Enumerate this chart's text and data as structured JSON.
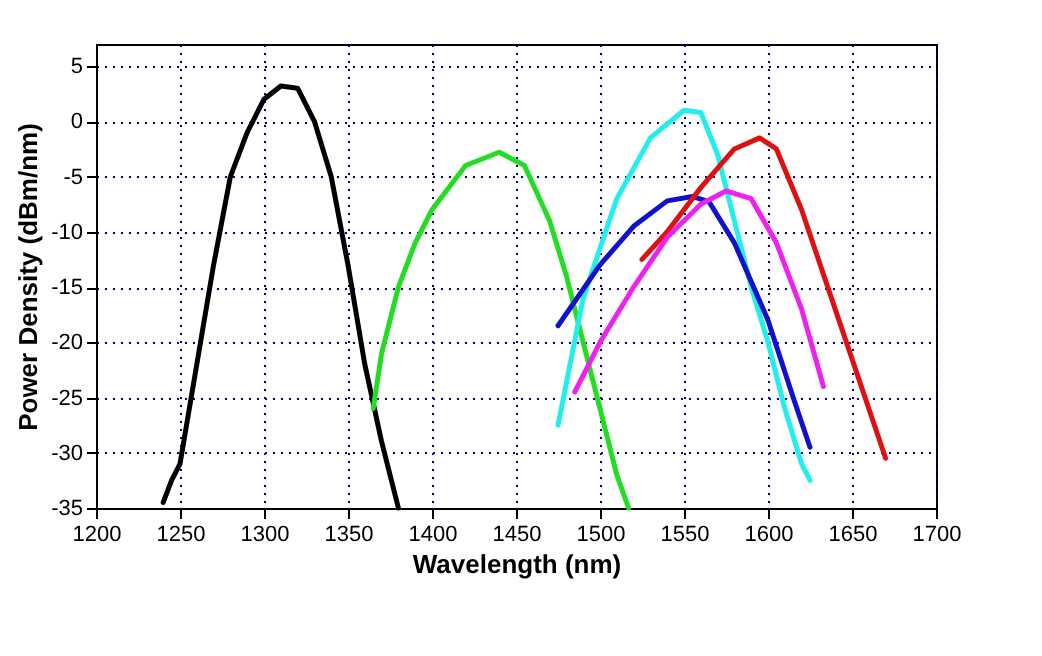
{
  "chart_data": {
    "type": "line",
    "xlabel": "Wavelength (nm)",
    "ylabel": "Power Density (dBm/nm)",
    "xlim": [
      1200,
      1700
    ],
    "xticks": [
      1200,
      1250,
      1300,
      1350,
      1400,
      1450,
      1500,
      1550,
      1600,
      1650,
      1700
    ],
    "ylim": [
      -35,
      7
    ],
    "yticks": [
      -35,
      -30,
      -25,
      -20,
      -15,
      -10,
      -5,
      0,
      5
    ],
    "grid": true,
    "line_style": "solid",
    "marker": "none",
    "series": [
      {
        "color": "#000000",
        "x": [
          1240,
          1245,
          1250,
          1260,
          1270,
          1280,
          1290,
          1300,
          1310,
          1320,
          1330,
          1340,
          1350,
          1360,
          1370,
          1380
        ],
        "values": [
          -34.5,
          -32.5,
          -31,
          -22,
          -13,
          -5,
          -1,
          2,
          3.2,
          3,
          0,
          -5,
          -13,
          -22,
          -29,
          -35
        ]
      },
      {
        "color": "#22dd22",
        "x": [
          1365,
          1370,
          1380,
          1390,
          1400,
          1420,
          1440,
          1455,
          1470,
          1480,
          1490,
          1500,
          1510,
          1517
        ],
        "values": [
          -26,
          -21,
          -15,
          -11,
          -8,
          -4,
          -2.8,
          -4,
          -9,
          -14,
          -20,
          -26,
          -32,
          -35
        ]
      },
      {
        "color": "#22eeee",
        "x": [
          1475,
          1490,
          1510,
          1530,
          1550,
          1560,
          1570,
          1580,
          1590,
          1600,
          1610,
          1620,
          1625
        ],
        "values": [
          -27.5,
          -16,
          -7,
          -1.5,
          1,
          0.8,
          -3,
          -9,
          -15,
          -20,
          -26,
          -31,
          -32.5
        ]
      },
      {
        "color": "#1111cc",
        "x": [
          1475,
          1500,
          1520,
          1540,
          1555,
          1565,
          1580,
          1600,
          1615,
          1625
        ],
        "values": [
          -18.5,
          -13,
          -9.5,
          -7.2,
          -6.8,
          -7.3,
          -11,
          -18,
          -25,
          -29.5
        ]
      },
      {
        "color": "#dd1111",
        "x": [
          1525,
          1540,
          1560,
          1580,
          1595,
          1605,
          1620,
          1640,
          1660,
          1670
        ],
        "values": [
          -12.5,
          -10,
          -6,
          -2.5,
          -1.5,
          -2.5,
          -8,
          -17,
          -26,
          -30.5
        ]
      },
      {
        "color": "#ee22ee",
        "x": [
          1485,
          1500,
          1520,
          1540,
          1560,
          1575,
          1590,
          1605,
          1620,
          1633
        ],
        "values": [
          -24.5,
          -20,
          -15,
          -10.5,
          -7.5,
          -6.3,
          -7,
          -11,
          -17,
          -24
        ]
      }
    ]
  }
}
